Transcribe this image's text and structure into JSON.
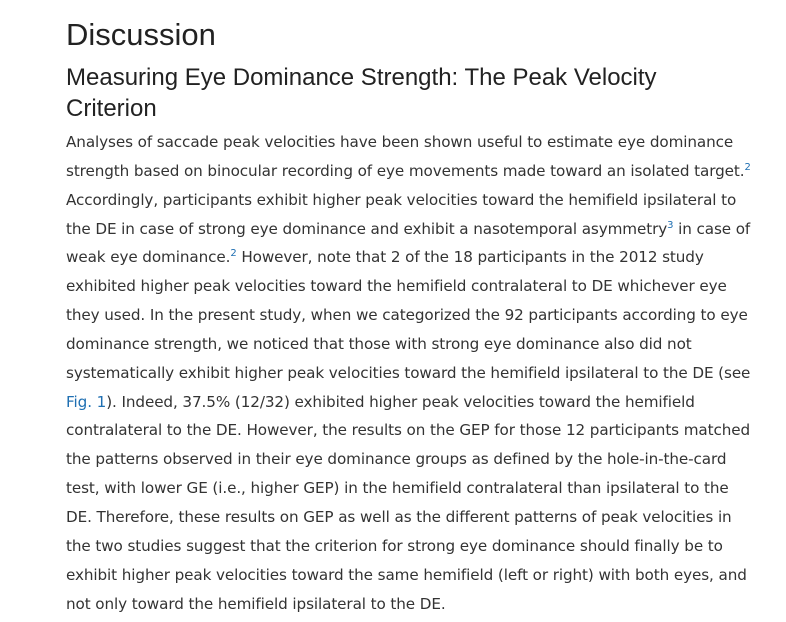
{
  "section": {
    "title": "Discussion"
  },
  "subsection": {
    "title": "Measuring Eye Dominance Strength: The Peak Velocity Criterion"
  },
  "paragraph": {
    "t1": "Analyses of saccade peak velocities have been shown useful to estimate eye dominance strength based on binocular recording of eye movements made toward an isolated target.",
    "ref1": "2",
    "t2": " Accordingly, participants exhibit higher peak velocities toward the hemifield ipsilateral to the DE in case of strong eye dominance and exhibit a nasotemporal asymmetry",
    "ref2": "3",
    "t3": " in case of weak eye dominance.",
    "ref3": "2",
    "t4": " However, note that 2 of the 18 participants in the 2012 study exhibited higher peak velocities toward the hemifield contralateral to DE whichever eye they used. In the present study, when we categorized the 92 participants according to eye dominance strength, we noticed that those with strong eye dominance also did not systematically exhibit higher peak velocities toward the hemifield ipsilateral to the DE (see ",
    "fig_link": "Fig. 1",
    "t5": "). Indeed, 37.5% (12/32) exhibited higher peak velocities toward the hemifield contralateral to the DE. However, the results on the GEP for those 12 participants matched the patterns observed in their eye dominance groups as defined by the hole-in-the-card test, with lower GE (i.e., higher GEP) in the hemifield contralateral than ipsilateral to the DE. Therefore, these results on GEP as well as the different patterns of peak velocities in the two studies suggest that the criterion for strong eye dominance should finally be to exhibit higher peak velocities toward the same hemifield (left or right) with both eyes, and not only toward the hemifield ipsilateral to the DE."
  },
  "colors": {
    "link": "#1f6fb2",
    "text": "#333333",
    "heading": "#222222"
  }
}
